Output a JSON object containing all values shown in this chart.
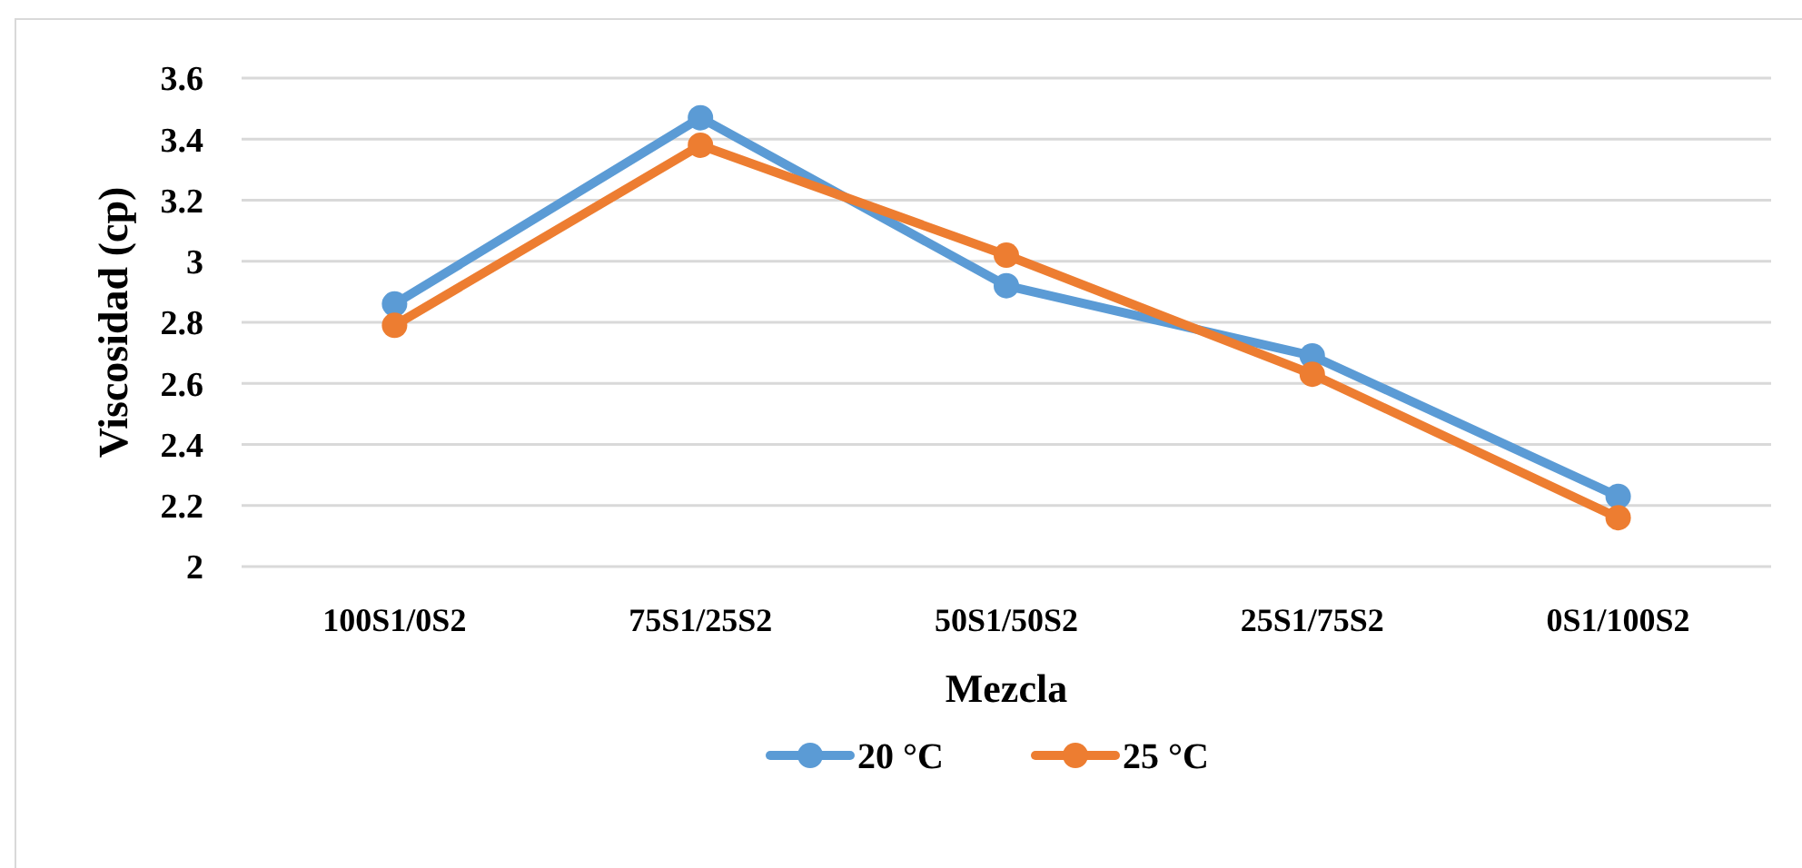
{
  "chart_data": {
    "type": "line",
    "xlabel": "Mezcla",
    "ylabel": "Viscosidad (cp)",
    "categories": [
      "100S1/0S2",
      "75S1/25S2",
      "50S1/50S2",
      "25S1/75S2",
      "0S1/100S2"
    ],
    "series": [
      {
        "name": "20 °C",
        "color": "#5b9bd5",
        "values": [
          2.86,
          3.47,
          2.92,
          2.69,
          2.23
        ]
      },
      {
        "name": "25 °C",
        "color": "#ed7d31",
        "values": [
          2.79,
          3.38,
          3.02,
          2.63,
          2.16
        ]
      }
    ],
    "ylim": [
      2,
      3.6
    ],
    "yticks": [
      2,
      2.2,
      2.4,
      2.6,
      2.8,
      3,
      3.2,
      3.4,
      3.6
    ],
    "grid": "y",
    "legend": "bottom",
    "marker": "circle",
    "line_style": "solid"
  }
}
